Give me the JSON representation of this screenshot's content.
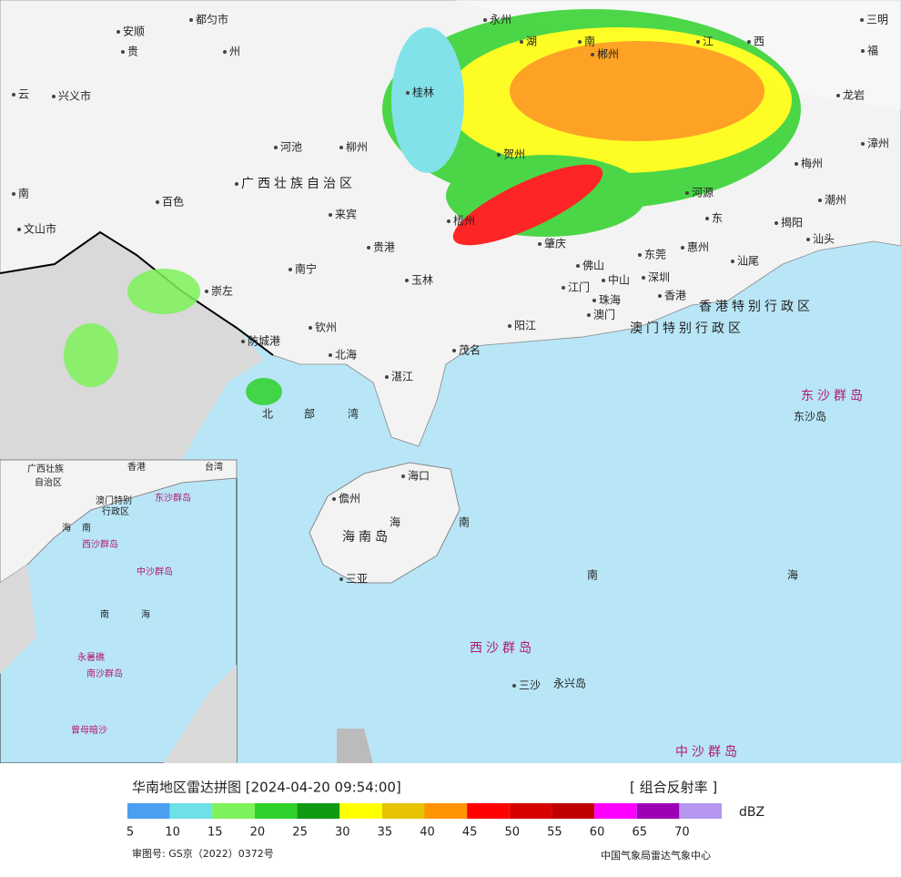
{
  "map": {
    "labels": [
      "都匀市",
      "安顺",
      "贵",
      "州",
      "云",
      "兴义市",
      "河池",
      "柳州",
      "广西壮族自治区",
      "百色",
      "南",
      "来宾",
      "贵港",
      "南宁",
      "崇左",
      "玉林",
      "钦州",
      "防城港",
      "北海",
      "茂名",
      "湛江",
      "阳江",
      "江门",
      "珠海",
      "澳门",
      "中山",
      "佛山",
      "肇庆",
      "梧州",
      "东莞",
      "深圳",
      "香港",
      "惠州",
      "汕尾",
      "河源",
      "东",
      "揭阳",
      "汕头",
      "潮州",
      "梅州",
      "漳州",
      "龙岩",
      "三明",
      "福",
      "江",
      "西",
      "湖",
      "南",
      "郴州",
      "永州",
      "桂林",
      "贺州",
      "文山市",
      "香港特别行政区",
      "澳门特别行政区",
      "东沙群岛",
      "东沙岛",
      "北",
      "部",
      "湾",
      "海口",
      "儋州",
      "海",
      "南",
      "海南岛",
      "三亚",
      "南",
      "海",
      "西沙群岛",
      "三沙",
      "永兴岛",
      "中沙群岛"
    ]
  },
  "inset": {
    "labels": [
      "广西壮族",
      "自治区",
      "香港",
      "台湾",
      "澳门特别",
      "行政区",
      "东沙群岛",
      "海",
      "南",
      "西沙群岛",
      "中沙群岛",
      "南",
      "海",
      "永暑礁",
      "南沙群岛",
      "曾母暗沙"
    ]
  },
  "legend": {
    "title": "华南地区雷达拼图 [2024-04-20 09:54:00]",
    "product": "[ 组合反射率 ]",
    "unit": "dBZ",
    "colors": [
      "#4a9ff0",
      "#6ee0e8",
      "#7ef25a",
      "#2ed12a",
      "#0f9a14",
      "#ffff00",
      "#e6c200",
      "#ff9400",
      "#ff0000",
      "#d80000",
      "#c00000",
      "#ff00ff",
      "#9c00b4",
      "#b496f0"
    ],
    "ticks": [
      5,
      10,
      15,
      20,
      25,
      30,
      35,
      40,
      45,
      50,
      55,
      60,
      65,
      70
    ]
  },
  "footer": {
    "approval": "审图号: GS京（2022）0372号",
    "source": "中国气象局雷达气象中心"
  }
}
